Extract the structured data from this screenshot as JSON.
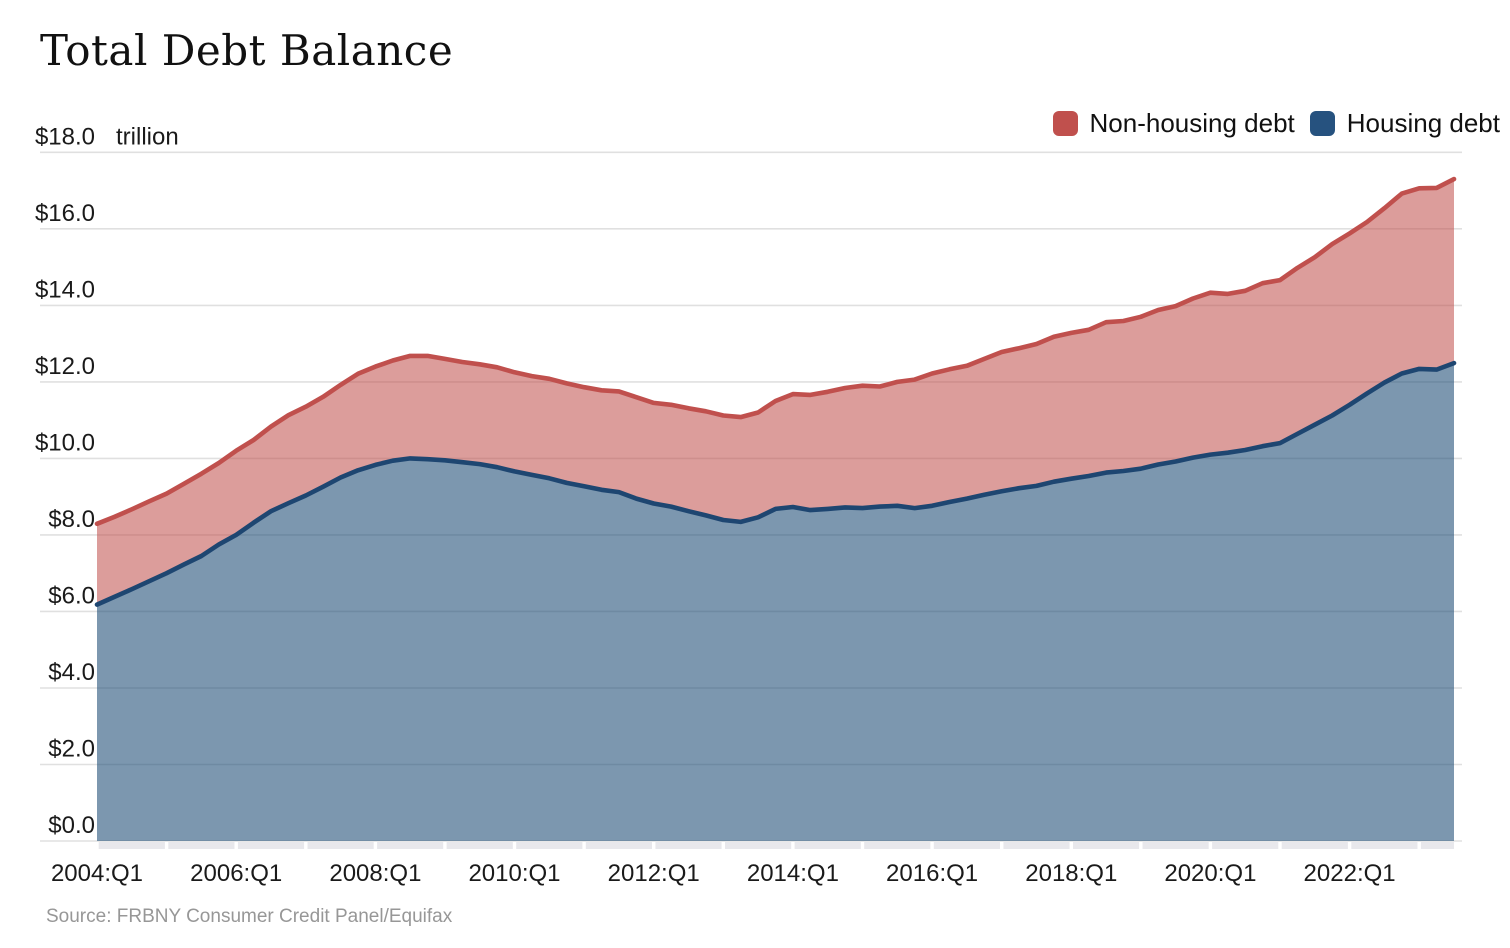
{
  "title": "Total Debt Balance",
  "unit_label": "trillion",
  "source": "Source: FRBNY Consumer Credit Panel/Equifax",
  "legend": [
    {
      "label": "Non-housing debt",
      "color": "#c0504d"
    },
    {
      "label": "Housing debt",
      "color": "#26527f"
    }
  ],
  "colors": {
    "nonhousing_line": "#c0504d",
    "nonhousing_fill": "#c0504d",
    "nonhousing_fill_opacity": 0.56,
    "housing_line": "#1e4671",
    "housing_fill": "#1e4b76",
    "housing_fill_opacity": 0.58,
    "gridline": "#e0e0e0",
    "axis_band": "#e8e8ec",
    "background": "#ffffff"
  },
  "chart_data": {
    "type": "area",
    "stacked": true,
    "title": "Total Debt Balance",
    "ylabel": "trillion (USD)",
    "ylim": [
      0,
      18
    ],
    "grid": true,
    "legend_position": "top-right",
    "y_ticks": [
      {
        "value": 0,
        "label": "$0.0"
      },
      {
        "value": 2,
        "label": "$2.0"
      },
      {
        "value": 4,
        "label": "$4.0"
      },
      {
        "value": 6,
        "label": "$6.0"
      },
      {
        "value": 8,
        "label": "$8.0"
      },
      {
        "value": 10,
        "label": "$10.0"
      },
      {
        "value": 12,
        "label": "$12.0"
      },
      {
        "value": 14,
        "label": "$14.0"
      },
      {
        "value": 16,
        "label": "$16.0"
      },
      {
        "value": 18,
        "label": "$18.0"
      }
    ],
    "x_tick_labels": [
      {
        "label": "2004:Q1",
        "index": 0
      },
      {
        "label": "2006:Q1",
        "index": 8
      },
      {
        "label": "2008:Q1",
        "index": 16
      },
      {
        "label": "2010:Q1",
        "index": 24
      },
      {
        "label": "2012:Q1",
        "index": 32
      },
      {
        "label": "2014:Q1",
        "index": 40
      },
      {
        "label": "2016:Q1",
        "index": 48
      },
      {
        "label": "2018:Q1",
        "index": 56
      },
      {
        "label": "2020:Q1",
        "index": 64
      },
      {
        "label": "2022:Q1",
        "index": 72
      }
    ],
    "x": [
      "2004:Q1",
      "2004:Q2",
      "2004:Q3",
      "2004:Q4",
      "2005:Q1",
      "2005:Q2",
      "2005:Q3",
      "2005:Q4",
      "2006:Q1",
      "2006:Q2",
      "2006:Q3",
      "2006:Q4",
      "2007:Q1",
      "2007:Q2",
      "2007:Q3",
      "2007:Q4",
      "2008:Q1",
      "2008:Q2",
      "2008:Q3",
      "2008:Q4",
      "2009:Q1",
      "2009:Q2",
      "2009:Q3",
      "2009:Q4",
      "2010:Q1",
      "2010:Q2",
      "2010:Q3",
      "2010:Q4",
      "2011:Q1",
      "2011:Q2",
      "2011:Q3",
      "2011:Q4",
      "2012:Q1",
      "2012:Q2",
      "2012:Q3",
      "2012:Q4",
      "2013:Q1",
      "2013:Q2",
      "2013:Q3",
      "2013:Q4",
      "2014:Q1",
      "2014:Q2",
      "2014:Q3",
      "2014:Q4",
      "2015:Q1",
      "2015:Q2",
      "2015:Q3",
      "2015:Q4",
      "2016:Q1",
      "2016:Q2",
      "2016:Q3",
      "2016:Q4",
      "2017:Q1",
      "2017:Q2",
      "2017:Q3",
      "2017:Q4",
      "2018:Q1",
      "2018:Q2",
      "2018:Q3",
      "2018:Q4",
      "2019:Q1",
      "2019:Q2",
      "2019:Q3",
      "2019:Q4",
      "2020:Q1",
      "2020:Q2",
      "2020:Q3",
      "2020:Q4",
      "2021:Q1",
      "2021:Q2",
      "2021:Q3",
      "2021:Q4",
      "2022:Q1",
      "2022:Q2",
      "2022:Q3",
      "2022:Q4",
      "2023:Q1",
      "2023:Q2",
      "2023:Q3"
    ],
    "series": [
      {
        "name": "Housing debt",
        "values": [
          6.18,
          6.38,
          6.58,
          6.79,
          7.0,
          7.23,
          7.45,
          7.75,
          8.0,
          8.32,
          8.62,
          8.83,
          9.03,
          9.26,
          9.5,
          9.69,
          9.83,
          9.94,
          10.0,
          9.98,
          9.95,
          9.9,
          9.85,
          9.77,
          9.66,
          9.57,
          9.48,
          9.36,
          9.27,
          9.18,
          9.12,
          8.95,
          8.82,
          8.74,
          8.62,
          8.51,
          8.39,
          8.34,
          8.46,
          8.68,
          8.73,
          8.65,
          8.68,
          8.72,
          8.7,
          8.74,
          8.76,
          8.7,
          8.76,
          8.86,
          8.95,
          9.05,
          9.14,
          9.22,
          9.28,
          9.39,
          9.47,
          9.54,
          9.63,
          9.67,
          9.73,
          9.84,
          9.92,
          10.02,
          10.1,
          10.15,
          10.22,
          10.32,
          10.4,
          10.64,
          10.88,
          11.12,
          11.4,
          11.7,
          11.98,
          12.22,
          12.34,
          12.32,
          12.49
        ]
      },
      {
        "name": "Non-housing debt",
        "values": [
          2.11,
          2.09,
          2.09,
          2.09,
          2.08,
          2.11,
          2.15,
          2.13,
          2.2,
          2.16,
          2.21,
          2.3,
          2.32,
          2.35,
          2.42,
          2.52,
          2.57,
          2.62,
          2.68,
          2.7,
          2.65,
          2.62,
          2.61,
          2.61,
          2.59,
          2.58,
          2.6,
          2.6,
          2.59,
          2.6,
          2.63,
          2.65,
          2.63,
          2.66,
          2.69,
          2.72,
          2.73,
          2.74,
          2.74,
          2.82,
          2.95,
          3.01,
          3.06,
          3.12,
          3.2,
          3.14,
          3.24,
          3.36,
          3.46,
          3.47,
          3.47,
          3.55,
          3.64,
          3.66,
          3.71,
          3.79,
          3.81,
          3.82,
          3.93,
          3.92,
          3.97,
          4.04,
          4.06,
          4.16,
          4.23,
          4.15,
          4.16,
          4.26,
          4.26,
          4.34,
          4.38,
          4.48,
          4.48,
          4.48,
          4.56,
          4.7,
          4.72,
          4.75,
          4.81
        ]
      }
    ]
  }
}
